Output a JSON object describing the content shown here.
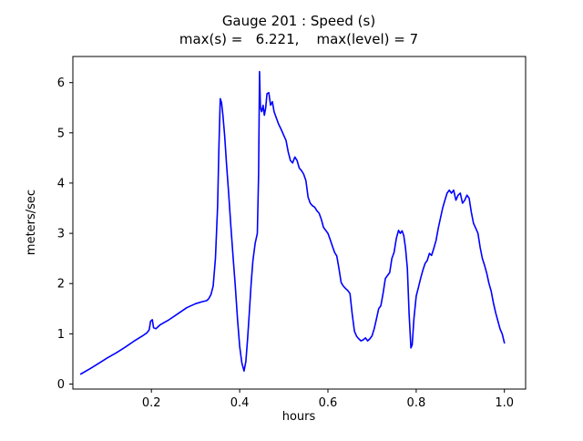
{
  "chart_data": {
    "type": "line",
    "title": "Gauge 201 : Speed (s)",
    "subtitle": "max(s) =   6.221,    max(level) = 7",
    "xlabel": "hours",
    "ylabel": "meters/sec",
    "xlim": [
      0.022,
      1.048
    ],
    "ylim": [
      -0.1,
      6.52
    ],
    "grid": false,
    "legend": "none",
    "x_tick_values": [
      0.2,
      0.4,
      0.6,
      0.8,
      1.0
    ],
    "x_tick_labels": [
      "0.2",
      "0.4",
      "0.6",
      "0.8",
      "1.0"
    ],
    "y_tick_values": [
      0,
      1,
      2,
      3,
      4,
      5,
      6
    ],
    "y_tick_labels": [
      "0",
      "1",
      "2",
      "3",
      "4",
      "5",
      "6"
    ],
    "line_color": "#0000ff",
    "max_s": 6.221,
    "max_level": 7,
    "series": [
      {
        "name": "speed",
        "points": [
          [
            0.04,
            0.2
          ],
          [
            0.06,
            0.3
          ],
          [
            0.08,
            0.41
          ],
          [
            0.1,
            0.52
          ],
          [
            0.12,
            0.62
          ],
          [
            0.14,
            0.73
          ],
          [
            0.16,
            0.85
          ],
          [
            0.18,
            0.96
          ],
          [
            0.19,
            1.02
          ],
          [
            0.195,
            1.08
          ],
          [
            0.198,
            1.25
          ],
          [
            0.202,
            1.28
          ],
          [
            0.205,
            1.12
          ],
          [
            0.21,
            1.1
          ],
          [
            0.215,
            1.14
          ],
          [
            0.22,
            1.18
          ],
          [
            0.24,
            1.28
          ],
          [
            0.26,
            1.4
          ],
          [
            0.28,
            1.52
          ],
          [
            0.3,
            1.6
          ],
          [
            0.315,
            1.64
          ],
          [
            0.325,
            1.66
          ],
          [
            0.33,
            1.7
          ],
          [
            0.335,
            1.78
          ],
          [
            0.34,
            1.95
          ],
          [
            0.345,
            2.5
          ],
          [
            0.35,
            3.55
          ],
          [
            0.353,
            4.7
          ],
          [
            0.356,
            5.68
          ],
          [
            0.359,
            5.6
          ],
          [
            0.362,
            5.35
          ],
          [
            0.366,
            4.95
          ],
          [
            0.37,
            4.4
          ],
          [
            0.375,
            3.8
          ],
          [
            0.38,
            3.15
          ],
          [
            0.385,
            2.55
          ],
          [
            0.39,
            1.95
          ],
          [
            0.395,
            1.3
          ],
          [
            0.4,
            0.75
          ],
          [
            0.405,
            0.42
          ],
          [
            0.41,
            0.26
          ],
          [
            0.414,
            0.45
          ],
          [
            0.418,
            0.9
          ],
          [
            0.422,
            1.45
          ],
          [
            0.426,
            2.0
          ],
          [
            0.43,
            2.45
          ],
          [
            0.435,
            2.8
          ],
          [
            0.44,
            3.0
          ],
          [
            0.443,
            4.2
          ],
          [
            0.445,
            6.22
          ],
          [
            0.447,
            5.5
          ],
          [
            0.45,
            5.42
          ],
          [
            0.453,
            5.55
          ],
          [
            0.456,
            5.35
          ],
          [
            0.459,
            5.5
          ],
          [
            0.462,
            5.78
          ],
          [
            0.466,
            5.8
          ],
          [
            0.47,
            5.55
          ],
          [
            0.474,
            5.62
          ],
          [
            0.478,
            5.42
          ],
          [
            0.483,
            5.3
          ],
          [
            0.488,
            5.18
          ],
          [
            0.495,
            5.05
          ],
          [
            0.5,
            4.95
          ],
          [
            0.505,
            4.85
          ],
          [
            0.51,
            4.62
          ],
          [
            0.515,
            4.45
          ],
          [
            0.52,
            4.4
          ],
          [
            0.525,
            4.52
          ],
          [
            0.53,
            4.45
          ],
          [
            0.535,
            4.3
          ],
          [
            0.54,
            4.25
          ],
          [
            0.545,
            4.18
          ],
          [
            0.55,
            4.05
          ],
          [
            0.555,
            3.72
          ],
          [
            0.56,
            3.6
          ],
          [
            0.565,
            3.55
          ],
          [
            0.57,
            3.52
          ],
          [
            0.575,
            3.45
          ],
          [
            0.58,
            3.4
          ],
          [
            0.585,
            3.28
          ],
          [
            0.59,
            3.12
          ],
          [
            0.6,
            3.0
          ],
          [
            0.605,
            2.88
          ],
          [
            0.61,
            2.75
          ],
          [
            0.615,
            2.62
          ],
          [
            0.62,
            2.55
          ],
          [
            0.625,
            2.3
          ],
          [
            0.63,
            2.02
          ],
          [
            0.635,
            1.95
          ],
          [
            0.64,
            1.9
          ],
          [
            0.645,
            1.86
          ],
          [
            0.65,
            1.8
          ],
          [
            0.655,
            1.4
          ],
          [
            0.66,
            1.05
          ],
          [
            0.665,
            0.95
          ],
          [
            0.67,
            0.9
          ],
          [
            0.675,
            0.86
          ],
          [
            0.68,
            0.88
          ],
          [
            0.685,
            0.92
          ],
          [
            0.69,
            0.86
          ],
          [
            0.695,
            0.9
          ],
          [
            0.7,
            0.96
          ],
          [
            0.705,
            1.1
          ],
          [
            0.71,
            1.3
          ],
          [
            0.715,
            1.5
          ],
          [
            0.72,
            1.56
          ],
          [
            0.725,
            1.8
          ],
          [
            0.73,
            2.1
          ],
          [
            0.735,
            2.16
          ],
          [
            0.74,
            2.22
          ],
          [
            0.745,
            2.5
          ],
          [
            0.75,
            2.62
          ],
          [
            0.755,
            2.9
          ],
          [
            0.76,
            3.06
          ],
          [
            0.764,
            3.0
          ],
          [
            0.768,
            3.05
          ],
          [
            0.772,
            2.95
          ],
          [
            0.776,
            2.7
          ],
          [
            0.78,
            2.3
          ],
          [
            0.784,
            1.4
          ],
          [
            0.788,
            0.72
          ],
          [
            0.791,
            0.78
          ],
          [
            0.795,
            1.3
          ],
          [
            0.8,
            1.75
          ],
          [
            0.805,
            1.92
          ],
          [
            0.81,
            2.1
          ],
          [
            0.815,
            2.26
          ],
          [
            0.82,
            2.4
          ],
          [
            0.825,
            2.46
          ],
          [
            0.83,
            2.6
          ],
          [
            0.835,
            2.56
          ],
          [
            0.84,
            2.7
          ],
          [
            0.845,
            2.86
          ],
          [
            0.85,
            3.1
          ],
          [
            0.855,
            3.3
          ],
          [
            0.86,
            3.5
          ],
          [
            0.865,
            3.66
          ],
          [
            0.87,
            3.8
          ],
          [
            0.875,
            3.86
          ],
          [
            0.88,
            3.8
          ],
          [
            0.885,
            3.86
          ],
          [
            0.89,
            3.66
          ],
          [
            0.895,
            3.76
          ],
          [
            0.9,
            3.8
          ],
          [
            0.905,
            3.6
          ],
          [
            0.91,
            3.66
          ],
          [
            0.915,
            3.76
          ],
          [
            0.92,
            3.7
          ],
          [
            0.925,
            3.42
          ],
          [
            0.93,
            3.2
          ],
          [
            0.935,
            3.1
          ],
          [
            0.94,
            3.0
          ],
          [
            0.945,
            2.72
          ],
          [
            0.95,
            2.5
          ],
          [
            0.955,
            2.36
          ],
          [
            0.96,
            2.2
          ],
          [
            0.965,
            2.0
          ],
          [
            0.97,
            1.85
          ],
          [
            0.975,
            1.62
          ],
          [
            0.98,
            1.42
          ],
          [
            0.985,
            1.26
          ],
          [
            0.99,
            1.1
          ],
          [
            0.995,
            1.0
          ],
          [
            1.0,
            0.82
          ]
        ]
      }
    ]
  }
}
